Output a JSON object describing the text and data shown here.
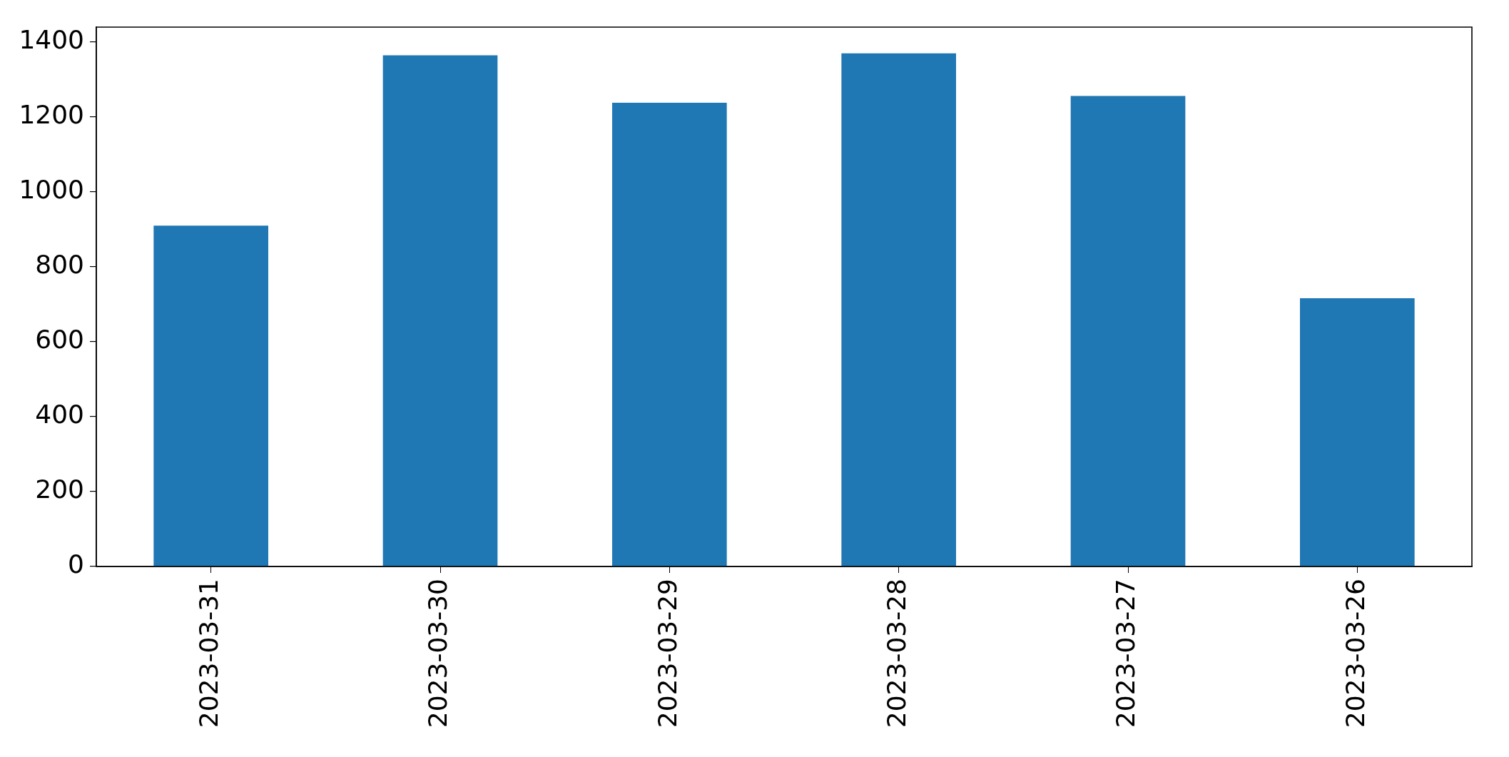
{
  "chart_data": {
    "type": "bar",
    "categories": [
      "2023-03-31",
      "2023-03-30",
      "2023-03-29",
      "2023-03-28",
      "2023-03-27",
      "2023-03-26"
    ],
    "values": [
      910,
      1365,
      1238,
      1370,
      1256,
      716
    ],
    "color": "#1f77b4",
    "ylim": [
      0,
      1440
    ],
    "yticks": [
      0,
      200,
      400,
      600,
      800,
      1000,
      1200,
      1400
    ]
  }
}
